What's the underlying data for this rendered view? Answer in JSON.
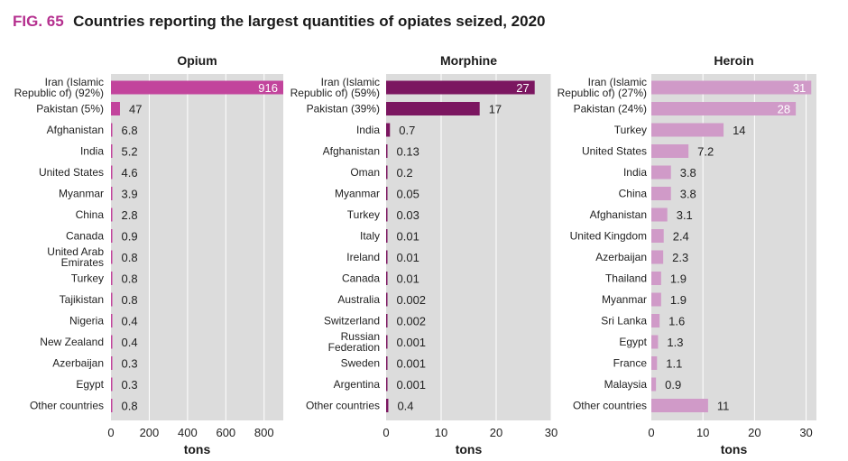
{
  "figure": {
    "label": "FIG. 65",
    "title": "Countries reporting the largest quantities of opiates seized, 2020"
  },
  "chart_data": [
    {
      "type": "bar",
      "title": "Opium",
      "xlabel": "tons",
      "xlim": [
        0,
        900
      ],
      "xticks": [
        0,
        200,
        400,
        600,
        800
      ],
      "grid": true,
      "color": "#c2449c",
      "categories": [
        "Iran (Islamic Republic of) (92%)",
        "Pakistan (5%)",
        "Afghanistan",
        "India",
        "United States",
        "Myanmar",
        "China",
        "Canada",
        "United Arab Emirates",
        "Turkey",
        "Tajikistan",
        "Nigeria",
        "New Zealand",
        "Azerbaijan",
        "Egypt",
        "Other countries"
      ],
      "values": [
        916,
        47,
        6.8,
        5.2,
        4.6,
        3.9,
        2.8,
        0.9,
        0.8,
        0.8,
        0.8,
        0.4,
        0.4,
        0.3,
        0.3,
        0.8
      ],
      "value_labels": [
        "916",
        "47",
        "6.8",
        "5.2",
        "4.6",
        "3.9",
        "2.8",
        "0.9",
        "0.8",
        "0.8",
        "0.8",
        "0.4",
        "0.4",
        "0.3",
        "0.3",
        "0.8"
      ]
    },
    {
      "type": "bar",
      "title": "Morphine",
      "xlabel": "tons",
      "xlim": [
        0,
        30
      ],
      "xticks": [
        0,
        10,
        20,
        30
      ],
      "grid": true,
      "color": "#7b1660",
      "categories": [
        "Iran (Islamic Republic of) (59%)",
        "Pakistan (39%)",
        "India",
        "Afghanistan",
        "Oman",
        "Myanmar",
        "Turkey",
        "Italy",
        "Ireland",
        "Canada",
        "Australia",
        "Switzerland",
        "Russian Federation",
        "Sweden",
        "Argentina",
        "Other countries"
      ],
      "values": [
        27,
        17,
        0.7,
        0.13,
        0.2,
        0.05,
        0.03,
        0.01,
        0.01,
        0.01,
        0.002,
        0.002,
        0.001,
        0.001,
        0.001,
        0.4
      ],
      "value_labels": [
        "27",
        "17",
        "0.7",
        "0.13",
        "0.2",
        "0.05",
        "0.03",
        "0.01",
        "0.01",
        "0.01",
        "0.002",
        "0.002",
        "0.001",
        "0.001",
        "0.001",
        "0.4"
      ]
    },
    {
      "type": "bar",
      "title": "Heroin",
      "xlabel": "tons",
      "xlim": [
        0,
        32
      ],
      "xticks": [
        0,
        10,
        20,
        30
      ],
      "grid": true,
      "color": "#d09ac8",
      "categories": [
        "Iran (Islamic Republic of) (27%)",
        "Pakistan (24%)",
        "Turkey",
        "United States",
        "India",
        "China",
        "Afghanistan",
        "United Kingdom",
        "Azerbaijan",
        "Thailand",
        "Myanmar",
        "Sri Lanka",
        "Egypt",
        "France",
        "Malaysia",
        "Other countries"
      ],
      "values": [
        31,
        28,
        14,
        7.2,
        3.8,
        3.8,
        3.1,
        2.4,
        2.3,
        1.9,
        1.9,
        1.6,
        1.3,
        1.1,
        0.9,
        11
      ],
      "value_labels": [
        "31",
        "28",
        "14",
        "7.2",
        "3.8",
        "3.8",
        "3.1",
        "2.4",
        "2.3",
        "1.9",
        "1.9",
        "1.6",
        "1.3",
        "1.1",
        "0.9",
        "11"
      ]
    }
  ]
}
